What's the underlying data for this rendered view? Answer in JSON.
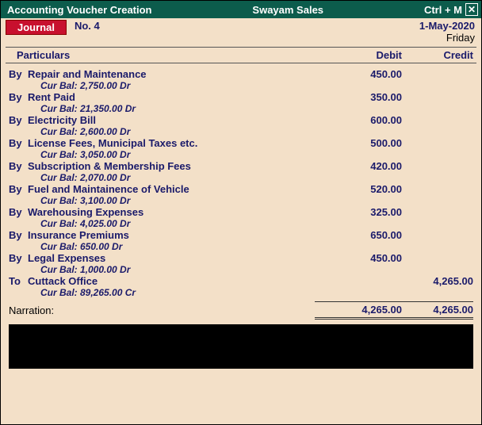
{
  "titlebar": {
    "left": "Accounting Voucher  Creation",
    "center": "Swayam Sales",
    "shortcut": "Ctrl + M"
  },
  "voucher": {
    "type": "Journal",
    "no_label": "No. 4",
    "date": "1-May-2020",
    "day": "Friday"
  },
  "columns": {
    "particulars": "Particulars",
    "debit": "Debit",
    "credit": "Credit"
  },
  "entries": [
    {
      "byto": "By",
      "particular": "Repair and Maintenance",
      "curbal": "Cur Bal:  2,750.00 Dr",
      "debit": "450.00",
      "credit": ""
    },
    {
      "byto": "By",
      "particular": "Rent Paid",
      "curbal": "Cur Bal:  21,350.00 Dr",
      "debit": "350.00",
      "credit": ""
    },
    {
      "byto": "By",
      "particular": "Electricity Bill",
      "curbal": "Cur Bal:  2,600.00 Dr",
      "debit": "600.00",
      "credit": ""
    },
    {
      "byto": "By",
      "particular": "License Fees, Municipal Taxes etc.",
      "curbal": "Cur Bal:  3,050.00 Dr",
      "debit": "500.00",
      "credit": ""
    },
    {
      "byto": "By",
      "particular": "Subscription & Membership Fees",
      "curbal": "Cur Bal:  2,070.00 Dr",
      "debit": "420.00",
      "credit": ""
    },
    {
      "byto": "By",
      "particular": "Fuel and Maintainence of Vehicle",
      "curbal": "Cur Bal:  3,100.00 Dr",
      "debit": "520.00",
      "credit": ""
    },
    {
      "byto": "By",
      "particular": "Warehousing Expenses",
      "curbal": "Cur Bal:  4,025.00 Dr",
      "debit": "325.00",
      "credit": ""
    },
    {
      "byto": "By",
      "particular": "Insurance Premiums",
      "curbal": "Cur Bal:  650.00 Dr",
      "debit": "650.00",
      "credit": ""
    },
    {
      "byto": "By",
      "particular": "Legal Expenses",
      "curbal": "Cur Bal:  1,000.00 Dr",
      "debit": "450.00",
      "credit": ""
    },
    {
      "byto": "To",
      "particular": "Cuttack Office",
      "curbal": "Cur Bal:  89,265.00 Cr",
      "debit": "",
      "credit": "4,265.00"
    }
  ],
  "totals": {
    "narration_label": "Narration:",
    "debit": "4,265.00",
    "credit": "4,265.00"
  },
  "colors": {
    "header_bg": "#0c5c4c",
    "body_bg": "#f3e0c8",
    "voucher_type_bg": "#c8102e",
    "text_accent": "#1a1a6a"
  }
}
